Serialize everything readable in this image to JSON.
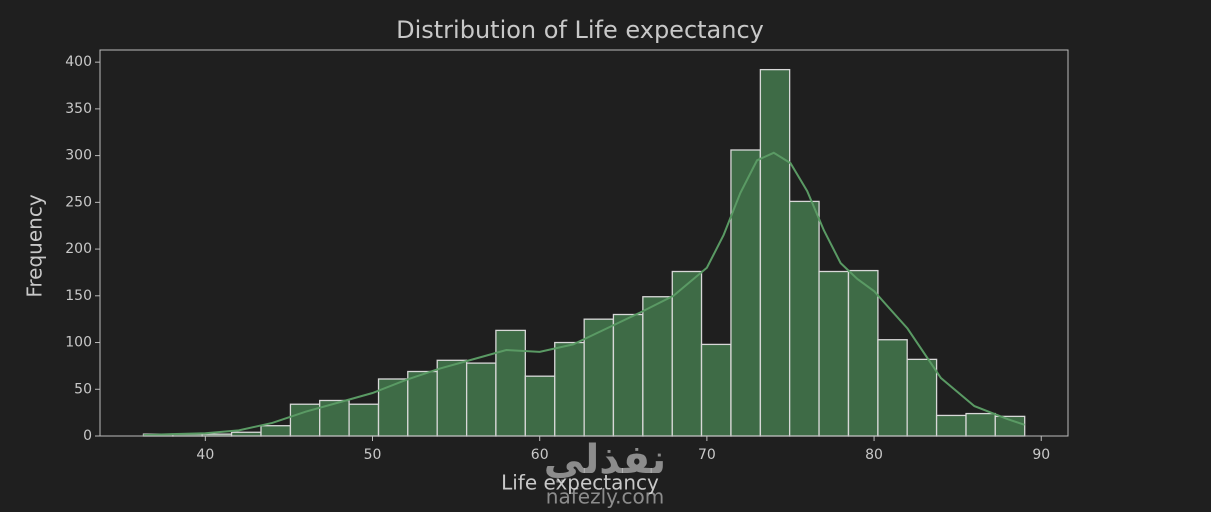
{
  "chart_data": {
    "type": "histogram",
    "title": "Distribution of Life expectancy",
    "x_label": "Life expectancy",
    "y_label": "Frequency",
    "bins": [
      36.3,
      38.06,
      39.81,
      41.57,
      43.33,
      45.09,
      46.84,
      48.6,
      50.36,
      52.11,
      53.87,
      55.63,
      57.38,
      59.14,
      60.9,
      62.66,
      64.41,
      66.17,
      67.93,
      69.68,
      71.44,
      73.2,
      74.95,
      76.71,
      78.47,
      80.23,
      81.98,
      83.74,
      85.5,
      87.25,
      89.01
    ],
    "values": [
      2,
      2,
      2,
      4,
      11,
      34,
      38,
      34,
      61,
      69,
      81,
      78,
      113,
      64,
      100,
      125,
      130,
      149,
      176,
      98,
      306,
      392,
      251,
      176,
      177,
      103,
      82,
      22,
      24,
      21
    ],
    "color": "#3e6b46",
    "edge_color": "#d8d8d8",
    "kde": {
      "color": "#5a9a64",
      "x": [
        36.3,
        38,
        40,
        42,
        44,
        46,
        48,
        50,
        52,
        54,
        56,
        58,
        60,
        62,
        64,
        66,
        68,
        70,
        71,
        72,
        73,
        74,
        75,
        76,
        77,
        78,
        79,
        80,
        82,
        84,
        86,
        88,
        89
      ],
      "values": [
        1,
        2,
        3,
        6,
        14,
        26,
        36,
        46,
        60,
        72,
        82,
        92,
        90,
        98,
        115,
        132,
        150,
        180,
        215,
        260,
        295,
        303,
        292,
        262,
        220,
        185,
        168,
        155,
        115,
        62,
        32,
        18,
        12
      ]
    },
    "xlim": [
      33.7,
      91.6
    ],
    "ylim": [
      0,
      413
    ],
    "xticks": [
      40,
      50,
      60,
      70,
      80,
      90
    ],
    "yticks": [
      0,
      50,
      100,
      150,
      200,
      250,
      300,
      350,
      400
    ],
    "watermark": {
      "arabic": "نفذلي",
      "site": "nafezly.com"
    }
  }
}
